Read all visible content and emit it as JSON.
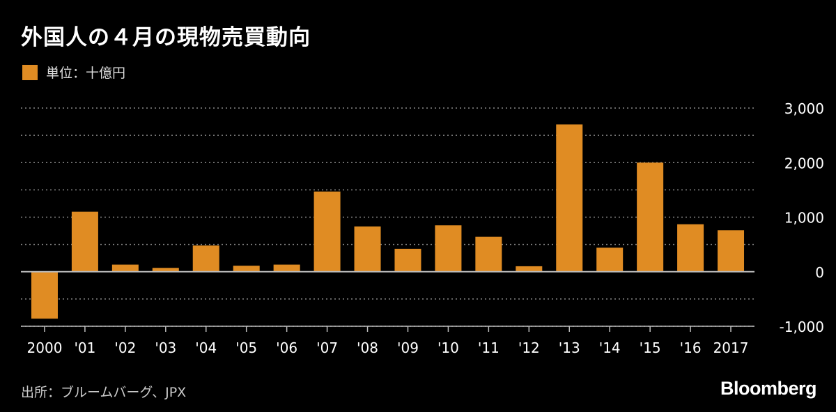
{
  "chart_data": {
    "type": "bar",
    "title": "外国人の４月の現物売買動向",
    "legend": [
      {
        "label": "単位：十億円",
        "color": "#e08c23"
      }
    ],
    "categories": [
      "2000",
      "'01",
      "'02",
      "'03",
      "'04",
      "'05",
      "'06",
      "'07",
      "'08",
      "'09",
      "'10",
      "'11",
      "'12",
      "'13",
      "'14",
      "'15",
      "'16",
      "2017"
    ],
    "values": [
      -860,
      1100,
      130,
      70,
      480,
      110,
      130,
      1470,
      830,
      420,
      850,
      640,
      100,
      2700,
      440,
      2000,
      870,
      760
    ],
    "ylim": [
      -1000,
      3000
    ],
    "yticks": [
      3000,
      2000,
      1000,
      0,
      -1000
    ],
    "ytick_labels": [
      "3,000",
      "2,000",
      "1,000",
      "0",
      "-1,000"
    ],
    "grid": true,
    "xlabel": "",
    "ylabel": "",
    "source": "出所：ブルームバーグ、JPX"
  },
  "colors": {
    "bar": "#e08c23",
    "grid": "#8a8a8a",
    "zero_line": "#bdbdbd",
    "text": "#ffffff"
  },
  "brand": "Bloomberg"
}
